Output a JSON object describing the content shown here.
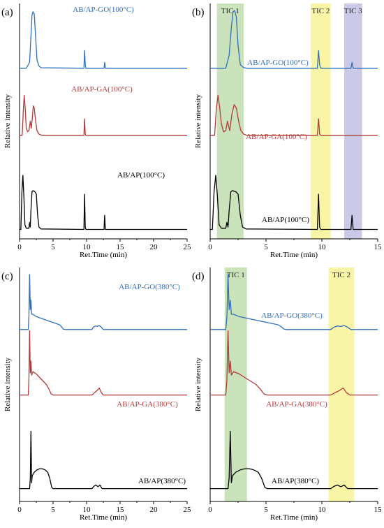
{
  "figure": {
    "colors": {
      "blue": "#2f6fbd",
      "red": "#b33a3a",
      "black": "#000000",
      "green_band": "#a7d08c",
      "yellow_band": "#f4ef6d",
      "purple_band": "#a7a7d8"
    }
  },
  "chart_data": [
    {
      "panel": "(a)",
      "type": "line",
      "xlabel": "Ret.Time (min)",
      "ylabel": "Relative intensity",
      "xlim": [
        0,
        25
      ],
      "xticks": [
        "0",
        "5",
        "10",
        "15",
        "20",
        "25"
      ],
      "bands": [],
      "series": [
        {
          "name": "AB/AP-GO(100°C)",
          "color": "#2f6fbd",
          "baseline": 0.725,
          "x": [
            0,
            1.0,
            1.5,
            1.7,
            1.85,
            2.0,
            2.2,
            2.4,
            2.6,
            2.9,
            3.2,
            9.5,
            9.6,
            9.7,
            9.8,
            9.9,
            12.6,
            12.7,
            12.8,
            25
          ],
          "y": [
            0.725,
            0.725,
            0.75,
            0.86,
            0.95,
            0.965,
            0.955,
            0.86,
            0.76,
            0.735,
            0.727,
            0.725,
            0.725,
            0.8,
            0.74,
            0.725,
            0.725,
            0.75,
            0.725,
            0.725
          ]
        },
        {
          "name": "AB/AP-GA(100°C)",
          "color": "#b33a3a",
          "baseline": 0.44,
          "x": [
            0,
            0.4,
            0.55,
            0.7,
            0.85,
            1.0,
            1.2,
            1.4,
            1.6,
            1.75,
            1.9,
            2.05,
            2.2,
            2.4,
            2.6,
            2.9,
            3.3,
            9.6,
            9.7,
            9.8,
            9.9,
            25
          ],
          "y": [
            0.44,
            0.44,
            0.54,
            0.61,
            0.55,
            0.47,
            0.455,
            0.46,
            0.5,
            0.47,
            0.51,
            0.565,
            0.555,
            0.5,
            0.46,
            0.445,
            0.44,
            0.44,
            0.51,
            0.445,
            0.44,
            0.44
          ]
        },
        {
          "name": "AB/AP(100°C)",
          "color": "#000000",
          "baseline": 0.04,
          "x": [
            0,
            0.2,
            0.35,
            0.5,
            0.65,
            0.8,
            1.0,
            1.4,
            1.5,
            1.6,
            1.7,
            1.85,
            2.0,
            2.3,
            2.5,
            2.7,
            2.9,
            3.2,
            9.6,
            9.7,
            9.8,
            9.9,
            12.6,
            12.7,
            12.8,
            25
          ],
          "y": [
            0.04,
            0.04,
            0.2,
            0.27,
            0.18,
            0.06,
            0.045,
            0.045,
            0.07,
            0.05,
            0.12,
            0.2,
            0.205,
            0.2,
            0.19,
            0.1,
            0.05,
            0.042,
            0.04,
            0.19,
            0.05,
            0.04,
            0.04,
            0.1,
            0.04,
            0.04
          ]
        }
      ]
    },
    {
      "panel": "(b)",
      "type": "line",
      "xlabel": "Ret.Time (min)",
      "ylabel": "Relative intensity",
      "xlim": [
        0,
        15
      ],
      "xticks": [
        "0",
        "5",
        "10",
        "15"
      ],
      "bands": [
        {
          "label": "TIC 1",
          "x0": 0.6,
          "x1": 3.0,
          "color": "#a7d08c"
        },
        {
          "label": "TIC 2",
          "x0": 9.0,
          "x1": 10.8,
          "color": "#f4ef6d"
        },
        {
          "label": "TIC 3",
          "x0": 12.0,
          "x1": 13.6,
          "color": "#a7a7d8"
        }
      ],
      "series": [
        {
          "name": "AB/AP-GO(100°C)",
          "color": "#2f6fbd",
          "baseline": 0.725,
          "x": [
            0,
            1.4,
            1.7,
            1.9,
            2.05,
            2.2,
            2.35,
            2.5,
            2.7,
            3.0,
            3.3,
            9.6,
            9.7,
            9.8,
            9.9,
            12.6,
            12.7,
            12.8,
            15
          ],
          "y": [
            0.725,
            0.725,
            0.78,
            0.9,
            0.965,
            0.97,
            0.94,
            0.82,
            0.74,
            0.728,
            0.725,
            0.725,
            0.8,
            0.74,
            0.725,
            0.725,
            0.75,
            0.725,
            0.725
          ]
        },
        {
          "name": "AB/AP-GA(100°C)",
          "color": "#b33a3a",
          "baseline": 0.44,
          "x": [
            0,
            0.4,
            0.55,
            0.7,
            0.85,
            1.0,
            1.2,
            1.4,
            1.55,
            1.75,
            1.95,
            2.15,
            2.35,
            2.55,
            2.75,
            3.0,
            3.3,
            9.6,
            9.7,
            9.8,
            9.9,
            15
          ],
          "y": [
            0.44,
            0.44,
            0.55,
            0.61,
            0.56,
            0.49,
            0.455,
            0.46,
            0.5,
            0.46,
            0.53,
            0.57,
            0.555,
            0.5,
            0.46,
            0.445,
            0.44,
            0.44,
            0.51,
            0.445,
            0.44,
            0.44
          ]
        },
        {
          "name": "AB/AP(100°C)",
          "color": "#000000",
          "baseline": 0.04,
          "x": [
            0,
            0.2,
            0.35,
            0.5,
            0.65,
            0.8,
            1.0,
            1.4,
            1.5,
            1.6,
            1.7,
            1.85,
            2.0,
            2.3,
            2.5,
            2.7,
            2.9,
            3.2,
            9.6,
            9.7,
            9.8,
            9.9,
            12.6,
            12.7,
            12.8,
            15
          ],
          "y": [
            0.04,
            0.04,
            0.2,
            0.27,
            0.18,
            0.06,
            0.045,
            0.045,
            0.07,
            0.05,
            0.12,
            0.2,
            0.205,
            0.2,
            0.19,
            0.1,
            0.05,
            0.042,
            0.04,
            0.19,
            0.05,
            0.04,
            0.04,
            0.1,
            0.04,
            0.04
          ]
        }
      ]
    },
    {
      "panel": "(c)",
      "type": "line",
      "xlabel": "Ret.Time (min)",
      "ylabel": "Relative intensity",
      "xlim": [
        0,
        25
      ],
      "xticks": [
        "0",
        "5",
        "10",
        "15",
        "20",
        "25"
      ],
      "bands": [],
      "series": [
        {
          "name": "AB/AP-GO(380°C)",
          "color": "#2f6fbd",
          "baseline": 0.735,
          "x": [
            0,
            1.3,
            1.4,
            1.5,
            1.6,
            1.7,
            1.8,
            2.0,
            2.5,
            3.0,
            3.5,
            4.0,
            4.5,
            5.0,
            5.5,
            6.0,
            6.3,
            6.5,
            6.8,
            10.8,
            11.0,
            11.3,
            11.6,
            11.9,
            12.2,
            12.5,
            25
          ],
          "y": [
            0.735,
            0.735,
            0.79,
            0.97,
            0.82,
            0.86,
            0.8,
            0.8,
            0.79,
            0.785,
            0.78,
            0.775,
            0.77,
            0.765,
            0.76,
            0.755,
            0.745,
            0.737,
            0.735,
            0.735,
            0.745,
            0.75,
            0.748,
            0.752,
            0.745,
            0.735,
            0.735
          ]
        },
        {
          "name": "AB/AP-GA(380°C)",
          "color": "#b33a3a",
          "baseline": 0.455,
          "x": [
            0,
            1.3,
            1.4,
            1.5,
            1.6,
            1.7,
            1.8,
            2.0,
            2.5,
            3.0,
            3.5,
            4.0,
            4.4,
            4.7,
            5.0,
            10.8,
            11.2,
            11.6,
            11.9,
            12.2,
            12.5,
            25
          ],
          "y": [
            0.455,
            0.455,
            0.52,
            0.73,
            0.55,
            0.6,
            0.54,
            0.555,
            0.545,
            0.53,
            0.515,
            0.5,
            0.48,
            0.46,
            0.455,
            0.455,
            0.465,
            0.475,
            0.485,
            0.465,
            0.455,
            0.455
          ]
        },
        {
          "name": "AB/AP(380°C)",
          "color": "#000000",
          "baseline": 0.055,
          "x": [
            0,
            1.5,
            1.6,
            1.7,
            1.8,
            1.9,
            2.2,
            2.6,
            3.0,
            3.4,
            3.8,
            4.2,
            4.5,
            4.8,
            5.0,
            10.8,
            11.1,
            11.4,
            11.7,
            12.0,
            12.3,
            25
          ],
          "y": [
            0.055,
            0.055,
            0.1,
            0.3,
            0.08,
            0.11,
            0.125,
            0.135,
            0.14,
            0.14,
            0.135,
            0.125,
            0.1,
            0.06,
            0.055,
            0.055,
            0.065,
            0.07,
            0.063,
            0.07,
            0.055,
            0.055
          ]
        }
      ]
    },
    {
      "panel": "(d)",
      "type": "line",
      "xlabel": "Ret.Time (min)",
      "ylabel": "Relative intensity",
      "xlim": [
        0,
        15
      ],
      "xticks": [
        "0",
        "5",
        "10",
        "15"
      ],
      "bands": [
        {
          "label": "TIC 1",
          "x0": 1.3,
          "x1": 3.3,
          "color": "#a7d08c"
        },
        {
          "label": "TIC 2",
          "x0": 10.6,
          "x1": 12.9,
          "color": "#f4ef6d"
        }
      ],
      "series": [
        {
          "name": "AB/AP-GO(380°C)",
          "color": "#2f6fbd",
          "baseline": 0.735,
          "x": [
            0,
            1.4,
            1.5,
            1.6,
            1.7,
            1.8,
            1.9,
            2.1,
            2.6,
            3.1,
            3.6,
            4.1,
            4.6,
            5.1,
            5.6,
            6.1,
            6.4,
            6.6,
            6.8,
            10.8,
            11.1,
            11.4,
            11.7,
            12.0,
            12.3,
            12.6,
            15
          ],
          "y": [
            0.735,
            0.735,
            0.79,
            0.97,
            0.82,
            0.86,
            0.8,
            0.8,
            0.79,
            0.785,
            0.78,
            0.775,
            0.77,
            0.765,
            0.76,
            0.755,
            0.745,
            0.737,
            0.735,
            0.735,
            0.745,
            0.75,
            0.748,
            0.752,
            0.745,
            0.735,
            0.735
          ]
        },
        {
          "name": "AB/AP-GA(380°C)",
          "color": "#b33a3a",
          "baseline": 0.455,
          "x": [
            0,
            1.4,
            1.5,
            1.6,
            1.7,
            1.8,
            1.9,
            2.1,
            2.6,
            3.1,
            3.6,
            4.1,
            4.5,
            4.8,
            5.1,
            10.8,
            11.2,
            11.6,
            11.9,
            12.2,
            12.5,
            15
          ],
          "y": [
            0.455,
            0.455,
            0.52,
            0.73,
            0.55,
            0.6,
            0.54,
            0.555,
            0.545,
            0.53,
            0.515,
            0.5,
            0.48,
            0.46,
            0.455,
            0.455,
            0.465,
            0.475,
            0.485,
            0.465,
            0.455,
            0.455
          ]
        },
        {
          "name": "AB/AP(380°C)",
          "color": "#000000",
          "baseline": 0.055,
          "x": [
            0,
            1.6,
            1.7,
            1.8,
            1.9,
            2.0,
            2.3,
            2.7,
            3.1,
            3.5,
            3.9,
            4.3,
            4.6,
            4.9,
            5.1,
            10.8,
            11.1,
            11.4,
            11.7,
            12.0,
            12.3,
            15
          ],
          "y": [
            0.055,
            0.055,
            0.1,
            0.3,
            0.08,
            0.11,
            0.125,
            0.135,
            0.14,
            0.14,
            0.135,
            0.125,
            0.1,
            0.06,
            0.055,
            0.055,
            0.065,
            0.07,
            0.063,
            0.07,
            0.055,
            0.055
          ]
        }
      ]
    }
  ]
}
